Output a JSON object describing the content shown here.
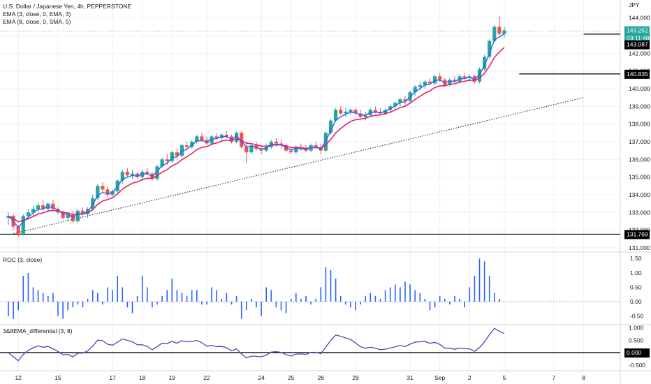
{
  "legend": {
    "symbol": "U.S. Dollar / Japanese Yen, 4h, PEPPERSTONE",
    "ema3": "EMA (3, close, 0, EMA, 3)",
    "ema8": "EMA (8, close, 0, SMA, 5)",
    "roc": "ROC (3, close)",
    "diff": "3&8EMA_differential (3, 8)"
  },
  "currency": "JPY",
  "price_tag": {
    "price": "143.252",
    "countdown": "03:11:48"
  },
  "colors": {
    "up": "#26a69a",
    "down": "#ef5350",
    "ema3": "#2962ff",
    "ema8": "#e91e63",
    "roc": "#2962ff",
    "diff": "#673ab7",
    "line": "#000000",
    "grid": "#eef0f3"
  },
  "chart_data": [
    {
      "type": "candlestick",
      "title": "U.S. Dollar / Japanese Yen, 4h, PEPPERSTONE",
      "ylim": [
        130.8,
        144.7
      ],
      "y_ticks": [
        "131.000",
        "132.000",
        "133.000",
        "134.000",
        "135.000",
        "136.000",
        "137.000",
        "138.000",
        "139.000",
        "140.000",
        "141.000",
        "142.000",
        "143.000",
        "144.000"
      ],
      "x_ticks": [
        {
          "i": 2,
          "label": "12"
        },
        {
          "i": 10,
          "label": "15"
        },
        {
          "i": 21,
          "label": "17"
        },
        {
          "i": 27,
          "label": "18"
        },
        {
          "i": 33,
          "label": "19"
        },
        {
          "i": 40,
          "label": "22"
        },
        {
          "i": 51,
          "label": "24"
        },
        {
          "i": 57,
          "label": "25"
        },
        {
          "i": 63,
          "label": "26"
        },
        {
          "i": 70,
          "label": "29"
        },
        {
          "i": 81,
          "label": "31"
        },
        {
          "i": 87,
          "label": "Sep"
        },
        {
          "i": 93,
          "label": "2"
        },
        {
          "i": 100,
          "label": "5"
        },
        {
          "i": 110,
          "label": "7"
        },
        {
          "i": 116,
          "label": "8"
        }
      ],
      "series": [
        {
          "name": "U.S. Dollar / Japanese Yen",
          "ohlc": [
            [
              132.7,
              133.0,
              132.3,
              132.8
            ],
            [
              132.8,
              132.9,
              132.0,
              132.2
            ],
            [
              132.2,
              132.3,
              131.6,
              131.8
            ],
            [
              131.8,
              132.9,
              131.7,
              132.8
            ],
            [
              132.8,
              133.2,
              132.6,
              133.0
            ],
            [
              133.0,
              133.4,
              132.8,
              133.2
            ],
            [
              133.2,
              133.6,
              133.0,
              133.4
            ],
            [
              133.4,
              133.7,
              133.1,
              133.2
            ],
            [
              133.2,
              133.6,
              133.0,
              133.5
            ],
            [
              133.5,
              133.7,
              133.1,
              133.2
            ],
            [
              133.2,
              133.3,
              132.9,
              133.0
            ],
            [
              133.0,
              133.1,
              132.6,
              132.7
            ],
            [
              132.7,
              133.0,
              132.5,
              132.9
            ],
            [
              132.9,
              133.1,
              132.4,
              132.5
            ],
            [
              132.5,
              133.2,
              132.4,
              133.1
            ],
            [
              133.1,
              133.3,
              132.8,
              132.9
            ],
            [
              132.9,
              133.3,
              132.7,
              133.2
            ],
            [
              133.2,
              134.0,
              133.1,
              133.8
            ],
            [
              133.8,
              134.6,
              133.7,
              134.5
            ],
            [
              134.5,
              134.7,
              134.1,
              134.3
            ],
            [
              134.3,
              134.5,
              133.8,
              134.0
            ],
            [
              134.0,
              134.3,
              133.9,
              134.2
            ],
            [
              134.2,
              134.9,
              134.1,
              134.8
            ],
            [
              134.8,
              135.4,
              134.6,
              135.3
            ],
            [
              135.3,
              135.5,
              135.0,
              135.1
            ],
            [
              135.1,
              135.4,
              134.9,
              135.2
            ],
            [
              135.2,
              135.3,
              134.9,
              135.0
            ],
            [
              135.0,
              135.4,
              134.8,
              135.3
            ],
            [
              135.3,
              135.5,
              135.1,
              135.2
            ],
            [
              135.2,
              135.3,
              134.8,
              134.9
            ],
            [
              134.9,
              135.7,
              134.8,
              135.6
            ],
            [
              135.6,
              136.1,
              135.5,
              136.0
            ],
            [
              136.0,
              136.3,
              135.7,
              135.9
            ],
            [
              135.9,
              136.5,
              135.8,
              136.4
            ],
            [
              136.4,
              136.6,
              136.0,
              136.2
            ],
            [
              136.2,
              136.9,
              136.1,
              136.8
            ],
            [
              136.8,
              137.0,
              136.5,
              136.7
            ],
            [
              136.7,
              137.1,
              136.6,
              137.0
            ],
            [
              137.0,
              137.4,
              136.9,
              137.3
            ],
            [
              137.3,
              137.5,
              137.0,
              137.1
            ],
            [
              137.1,
              137.3,
              136.8,
              136.9
            ],
            [
              136.9,
              137.4,
              136.8,
              137.3
            ],
            [
              137.3,
              137.5,
              137.1,
              137.2
            ],
            [
              137.2,
              137.5,
              137.0,
              137.4
            ],
            [
              137.4,
              137.6,
              137.2,
              137.3
            ],
            [
              137.3,
              137.4,
              136.9,
              137.0
            ],
            [
              137.0,
              137.6,
              136.9,
              137.5
            ],
            [
              137.5,
              137.6,
              136.6,
              136.7
            ],
            [
              136.7,
              137.0,
              135.8,
              136.4
            ],
            [
              136.4,
              136.9,
              136.3,
              136.8
            ],
            [
              136.8,
              137.0,
              136.5,
              136.6
            ],
            [
              136.6,
              136.8,
              136.3,
              136.5
            ],
            [
              136.5,
              136.9,
              136.4,
              136.7
            ],
            [
              136.7,
              137.1,
              136.6,
              137.0
            ],
            [
              137.0,
              137.2,
              136.7,
              136.9
            ],
            [
              136.9,
              137.1,
              136.6,
              136.8
            ],
            [
              136.8,
              136.9,
              136.4,
              136.5
            ],
            [
              136.5,
              136.7,
              136.3,
              136.4
            ],
            [
              136.4,
              136.8,
              136.3,
              136.7
            ],
            [
              136.7,
              136.9,
              136.5,
              136.6
            ],
            [
              136.6,
              136.8,
              136.4,
              136.5
            ],
            [
              136.5,
              136.9,
              136.4,
              136.8
            ],
            [
              136.8,
              137.0,
              136.6,
              136.7
            ],
            [
              136.7,
              136.9,
              136.3,
              136.5
            ],
            [
              136.5,
              137.6,
              136.4,
              137.5
            ],
            [
              137.5,
              138.3,
              137.4,
              138.2
            ],
            [
              138.2,
              138.9,
              138.1,
              138.8
            ],
            [
              138.8,
              139.0,
              138.5,
              138.6
            ],
            [
              138.6,
              138.9,
              138.4,
              138.7
            ],
            [
              138.7,
              138.9,
              138.5,
              138.8
            ],
            [
              138.8,
              138.9,
              138.5,
              138.6
            ],
            [
              138.6,
              138.8,
              138.3,
              138.4
            ],
            [
              138.4,
              138.7,
              138.2,
              138.5
            ],
            [
              138.5,
              138.9,
              138.4,
              138.8
            ],
            [
              138.8,
              139.0,
              138.6,
              138.7
            ],
            [
              138.7,
              138.9,
              138.5,
              138.6
            ],
            [
              138.6,
              138.9,
              138.5,
              138.8
            ],
            [
              138.8,
              139.1,
              138.7,
              139.0
            ],
            [
              139.0,
              139.3,
              138.8,
              139.2
            ],
            [
              139.2,
              139.5,
              139.0,
              139.4
            ],
            [
              139.4,
              139.6,
              139.1,
              139.3
            ],
            [
              139.3,
              139.9,
              139.2,
              139.8
            ],
            [
              139.8,
              140.2,
              139.6,
              140.1
            ],
            [
              140.1,
              140.4,
              139.9,
              140.2
            ],
            [
              140.2,
              140.5,
              140.0,
              140.4
            ],
            [
              140.4,
              140.6,
              140.2,
              140.3
            ],
            [
              140.3,
              140.8,
              140.2,
              140.7
            ],
            [
              140.7,
              140.9,
              140.4,
              140.5
            ],
            [
              140.5,
              140.6,
              140.1,
              140.2
            ],
            [
              140.2,
              140.6,
              140.1,
              140.5
            ],
            [
              140.5,
              140.7,
              140.3,
              140.4
            ],
            [
              140.4,
              140.8,
              140.3,
              140.7
            ],
            [
              140.7,
              140.9,
              140.5,
              140.6
            ],
            [
              140.6,
              140.8,
              140.4,
              140.7
            ],
            [
              140.7,
              140.8,
              140.3,
              140.4
            ],
            [
              140.4,
              141.2,
              140.3,
              141.1
            ],
            [
              141.1,
              141.9,
              141.0,
              141.8
            ],
            [
              141.8,
              142.8,
              141.7,
              142.7
            ],
            [
              142.7,
              143.6,
              142.6,
              143.5
            ],
            [
              143.5,
              144.1,
              143.0,
              143.1
            ],
            [
              143.1,
              143.5,
              142.9,
              143.3
            ]
          ]
        }
      ]
    },
    {
      "type": "line",
      "series": [
        {
          "name": "EMA (3, close, 0, EMA, 3)",
          "computed_from": "close",
          "period": 3
        },
        {
          "name": "EMA (8, close, 0, SMA, 5)",
          "computed_from": "close",
          "period": 8
        }
      ]
    },
    {
      "type": "bar",
      "title": "ROC (3, close)",
      "ylim": [
        -0.8,
        1.7
      ],
      "y_ticks": [
        "1.50",
        "1.00",
        "0.50",
        "0.00",
        "-0.50"
      ],
      "series": [
        {
          "name": "ROC (3, close)",
          "values": [
            -0.5,
            -0.6,
            -0.3,
            0.9,
            1.0,
            0.5,
            0.4,
            0.3,
            0.2,
            0.3,
            -0.5,
            -0.6,
            -0.3,
            -0.2,
            -0.1,
            -0.2,
            0.1,
            0.4,
            0.3,
            -0.1,
            0.5,
            0.4,
            0.9,
            0.5,
            -0.2,
            -0.4,
            0.2,
            0.9,
            0.5,
            -0.2,
            -0.1,
            0.2,
            0.4,
            0.8,
            0.4,
            0.3,
            0.2,
            0.4,
            0.4,
            -0.1,
            -0.1,
            0.5,
            0.4,
            0.1,
            0.3,
            -0.1,
            0.2,
            -0.6,
            -0.3,
            0.1,
            -0.2,
            -0.5,
            0.5,
            0.4,
            -0.2,
            -0.3,
            -0.4,
            0.1,
            0.3,
            0.1,
            0.2,
            -0.1,
            0.1,
            0.5,
            1.2,
            1.1,
            0.8,
            0.2,
            -0.1,
            -0.2,
            -0.3,
            -0.1,
            0.2,
            0.3,
            0.2,
            0.1,
            0.4,
            0.5,
            0.6,
            0.5,
            0.7,
            0.6,
            0.4,
            0.3,
            0.1,
            -0.3,
            -0.2,
            0.2,
            0.1,
            -0.1,
            0.2,
            0.1,
            -0.2,
            0.5,
            0.9,
            1.5,
            1.4,
            0.9,
            0.3,
            0.1
          ]
        }
      ]
    },
    {
      "type": "line",
      "title": "3&8EMA_differential (3, 8)",
      "ylim": [
        -0.7,
        1.1
      ],
      "y_ticks": [
        "1.000",
        "0.500",
        "0.000",
        "-0.500"
      ],
      "series": [
        {
          "name": "3&8EMA_differential (3, 8)",
          "computed_from": "EMA3 - EMA8"
        }
      ]
    }
  ],
  "markers": {
    "labels": [
      "131.769",
      "140.835",
      "143.087",
      "143.252"
    ],
    "values": [
      131.769,
      140.835,
      143.087,
      143.252
    ],
    "diff_zero_label": "0.000",
    "trendline_from": [
      1,
      131.8
    ],
    "trendline_to": [
      116,
      139.5
    ]
  }
}
